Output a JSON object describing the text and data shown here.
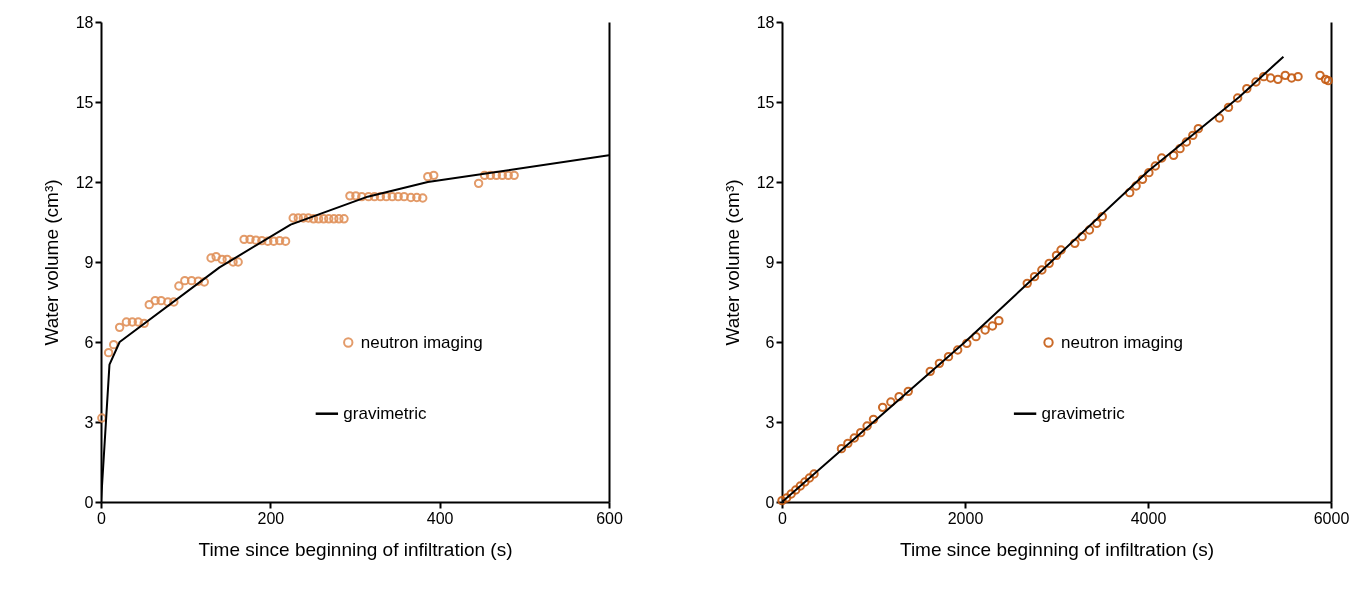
{
  "chart_data": [
    {
      "type": "scatter",
      "xlabel": "Time since beginning of infiltration (s)",
      "ylabel": "Water volume (cm³)",
      "xlim": [
        0,
        600
      ],
      "xticks": [
        0,
        200,
        400,
        600
      ],
      "ylim": [
        0,
        18
      ],
      "yticks": [
        0,
        3,
        6,
        9,
        12,
        15,
        18
      ],
      "legend": "right",
      "series": [
        {
          "name": "neutron imaging",
          "marker": "circle",
          "color": "#e0915a",
          "x": [
            1,
            9,
            15,
            22,
            30,
            37,
            44,
            51,
            57,
            64,
            71,
            79,
            86,
            92,
            99,
            107,
            115,
            122,
            130,
            136,
            143,
            149,
            156,
            162,
            169,
            176,
            183,
            190,
            197,
            204,
            211,
            218,
            227,
            233,
            239,
            245,
            251,
            257,
            263,
            269,
            275,
            281,
            287,
            294,
            301,
            308,
            316,
            323,
            330,
            337,
            344,
            351,
            358,
            366,
            373,
            380,
            386,
            393,
            446,
            453,
            460,
            467,
            474,
            481,
            488
          ],
          "values": [
            3.15,
            5.6,
            5.9,
            6.55,
            6.75,
            6.75,
            6.75,
            6.7,
            7.4,
            7.55,
            7.55,
            7.5,
            7.5,
            8.1,
            8.3,
            8.3,
            8.28,
            8.25,
            9.15,
            9.2,
            9.1,
            9.1,
            9.0,
            9.0,
            9.85,
            9.85,
            9.82,
            9.8,
            9.78,
            9.78,
            9.8,
            9.78,
            10.65,
            10.65,
            10.65,
            10.65,
            10.62,
            10.62,
            10.62,
            10.62,
            10.62,
            10.62,
            10.62,
            11.48,
            11.48,
            11.45,
            11.45,
            11.45,
            11.45,
            11.45,
            11.45,
            11.45,
            11.45,
            11.42,
            11.42,
            11.4,
            12.2,
            12.25,
            11.95,
            12.25,
            12.25,
            12.25,
            12.25,
            12.25,
            12.25
          ]
        },
        {
          "name": "gravimetric",
          "type": "line",
          "line_style": "solid",
          "color": "#000000",
          "x": [
            0,
            10,
            22,
            140,
            224,
            315,
            386,
            600
          ],
          "values": [
            0,
            5.15,
            6.0,
            8.8,
            10.4,
            11.45,
            12.0,
            13.0
          ]
        }
      ]
    },
    {
      "type": "scatter",
      "xlabel": "Time since beginning of infiltration (s)",
      "ylabel": "Water volume (cm³)",
      "xlim": [
        0,
        6000
      ],
      "xticks": [
        0,
        2000,
        4000,
        6000
      ],
      "ylim": [
        0,
        18
      ],
      "yticks": [
        0,
        3,
        6,
        9,
        12,
        15,
        18
      ],
      "legend": "right",
      "series": [
        {
          "name": "neutron imaging",
          "marker": "circle",
          "color": "#c55a11",
          "x": [
            0,
            50,
            100,
            150,
            200,
            250,
            300,
            350,
            650,
            720,
            790,
            860,
            930,
            1000,
            1100,
            1190,
            1280,
            1380,
            1620,
            1720,
            1820,
            1920,
            2020,
            2120,
            2220,
            2300,
            2370,
            2680,
            2760,
            2840,
            2920,
            3000,
            3050,
            3200,
            3280,
            3360,
            3440,
            3500,
            3800,
            3870,
            3940,
            4010,
            4080,
            4150,
            4280,
            4350,
            4420,
            4490,
            4550,
            4780,
            4880,
            4980,
            5080,
            5180,
            5265,
            5340,
            5420,
            5500,
            5570,
            5640,
            5880,
            5940,
            5970
          ],
          "values": [
            0.05,
            0.15,
            0.3,
            0.45,
            0.6,
            0.75,
            0.9,
            1.05,
            2.0,
            2.2,
            2.4,
            2.6,
            2.85,
            3.1,
            3.55,
            3.75,
            3.95,
            4.15,
            4.9,
            5.2,
            5.45,
            5.7,
            5.95,
            6.2,
            6.45,
            6.6,
            6.8,
            8.2,
            8.45,
            8.7,
            8.95,
            9.25,
            9.45,
            9.7,
            9.95,
            10.2,
            10.45,
            10.7,
            11.6,
            11.85,
            12.1,
            12.35,
            12.6,
            12.9,
            13.0,
            13.25,
            13.5,
            13.75,
            14.0,
            14.4,
            14.8,
            15.15,
            15.5,
            15.75,
            15.95,
            15.9,
            15.85,
            16.0,
            15.9,
            15.95,
            16.0,
            15.85,
            15.8
          ]
        },
        {
          "name": "gravimetric",
          "type": "line",
          "line_style": "solid",
          "color": "#000000",
          "x": [
            0,
            1000,
            2000,
            3000,
            4000,
            5000,
            5480
          ],
          "values": [
            0,
            3.0,
            6.0,
            9.2,
            12.4,
            15.2,
            16.7
          ]
        }
      ]
    }
  ]
}
